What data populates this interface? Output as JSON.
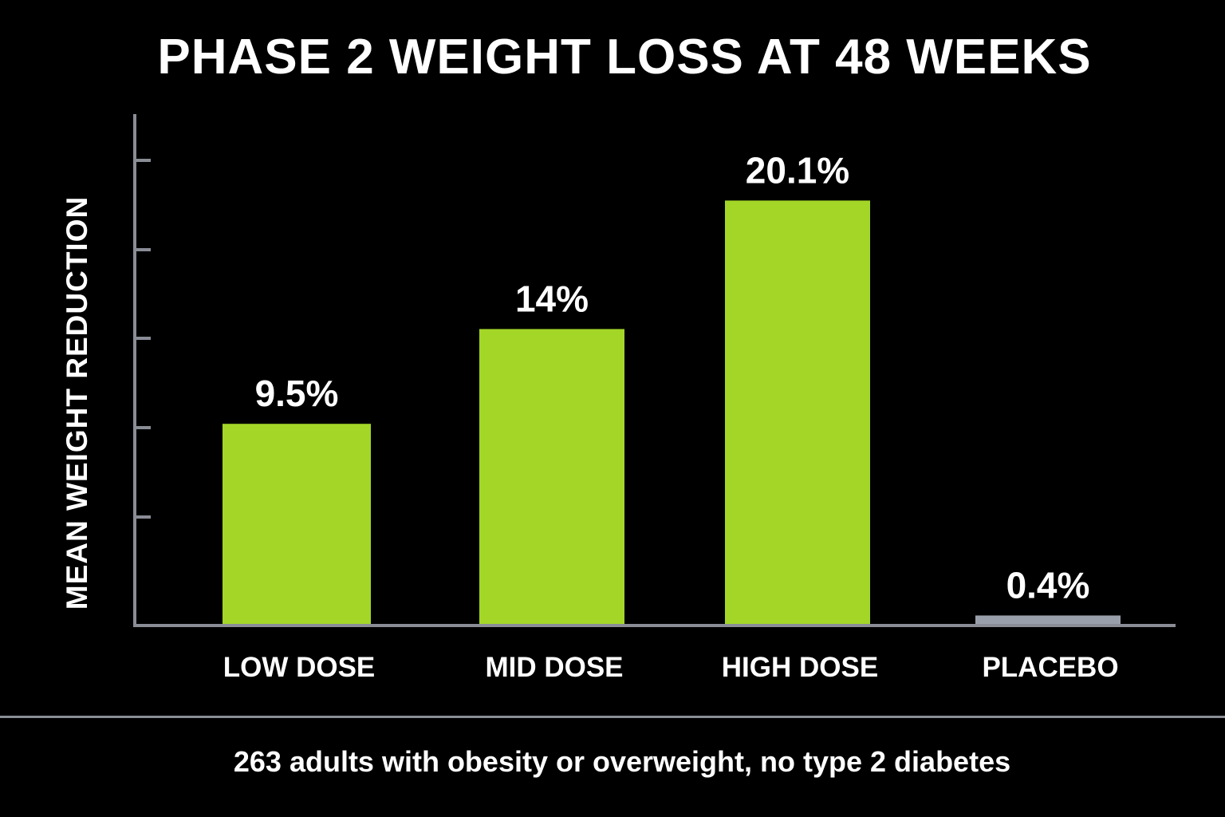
{
  "chart_data": {
    "type": "bar",
    "title": "PHASE 2 WEIGHT LOSS AT 48 WEEKS",
    "ylabel": "MEAN WEIGHT REDUCTION",
    "xlabel": "",
    "categories": [
      "LOW DOSE",
      "MID DOSE",
      "HIGH DOSE",
      "PLACEBO"
    ],
    "values": [
      9.5,
      14,
      20.1,
      0.4
    ],
    "data_labels": [
      "9.5%",
      "14%",
      "20.1%",
      "0.4%"
    ],
    "bar_colors": [
      "#a3d627",
      "#a3d627",
      "#a3d627",
      "#9aa0ab"
    ],
    "ylim": [
      0,
      24
    ],
    "grid": false,
    "legend": "none"
  },
  "colors": {
    "background": "#000000",
    "axis": "#8a8d96",
    "text": "#ffffff",
    "treatment": "#a3d627",
    "placebo": "#9aa0ab"
  },
  "footnote": "263 adults with obesity or overweight, no type 2 diabetes"
}
